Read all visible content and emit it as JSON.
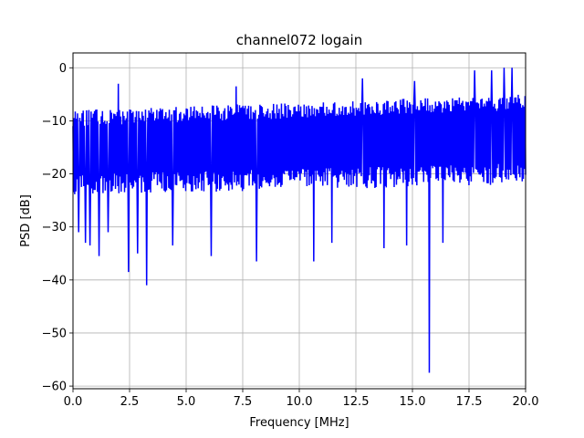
{
  "chart_data": {
    "type": "line",
    "title": "channel072 logain",
    "xlabel": "Frequency [MHz]",
    "ylabel": "PSD [dB]",
    "xlim": [
      0,
      20
    ],
    "ylim": [
      -60.5,
      2.8
    ],
    "xticks": [
      0,
      2.5,
      5,
      7.5,
      10,
      12.5,
      15,
      17.5,
      20
    ],
    "xtick_labels": [
      "0.0",
      "2.5",
      "5.0",
      "7.5",
      "10.0",
      "12.5",
      "15.0",
      "17.5",
      "20.0"
    ],
    "yticks": [
      0,
      -10,
      -20,
      -30,
      -40,
      -50,
      -60
    ],
    "ytick_labels": [
      "0",
      "−10",
      "−20",
      "−30",
      "−40",
      "−50",
      "−60"
    ],
    "grid": true,
    "series": [
      {
        "color": "#0000ff",
        "num_points": 800,
        "band_top": -8,
        "band_bottom": -22,
        "dips": [
          {
            "x": 0.25,
            "y": -31
          },
          {
            "x": 0.55,
            "y": -33
          },
          {
            "x": 0.75,
            "y": -33.5
          },
          {
            "x": 1.15,
            "y": -35.5
          },
          {
            "x": 1.55,
            "y": -31
          },
          {
            "x": 2.45,
            "y": -38.5
          },
          {
            "x": 2.85,
            "y": -35
          },
          {
            "x": 3.25,
            "y": -41
          },
          {
            "x": 4.4,
            "y": -33.5
          },
          {
            "x": 6.1,
            "y": -35.5
          },
          {
            "x": 8.1,
            "y": -36.5
          },
          {
            "x": 10.65,
            "y": -36.5
          },
          {
            "x": 11.45,
            "y": -33
          },
          {
            "x": 13.75,
            "y": -34
          },
          {
            "x": 14.75,
            "y": -33.5
          },
          {
            "x": 15.75,
            "y": -57.5
          },
          {
            "x": 16.35,
            "y": -33
          }
        ],
        "peaks": [
          {
            "x": 2.0,
            "y": -3
          },
          {
            "x": 7.2,
            "y": -3.5
          },
          {
            "x": 12.8,
            "y": -2
          },
          {
            "x": 15.1,
            "y": -2.5
          },
          {
            "x": 17.75,
            "y": -0.5
          },
          {
            "x": 18.5,
            "y": -0.5
          },
          {
            "x": 19.05,
            "y": 0
          },
          {
            "x": 19.4,
            "y": 0
          }
        ]
      }
    ]
  }
}
